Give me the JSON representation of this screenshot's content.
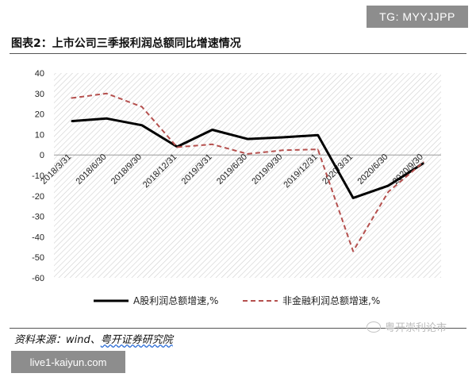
{
  "header": {
    "tg_label": "TG: MYYJJPP",
    "title": "图表2：上市公司三季报利润总额同比增速情况"
  },
  "footer": {
    "source_prefix": "资料来源：wind、",
    "source_org": "粤开证券研究院",
    "watermark": "粤开崇利论市",
    "site": "live1-kaiyun.com"
  },
  "colors": {
    "series_a": "#000000",
    "series_b": "#b5504e",
    "grid_hatch": "#d0d0d0"
  },
  "chart_data": {
    "type": "line",
    "categories": [
      "2018/3/31",
      "2018/6/30",
      "2018/9/30",
      "2018/12/31",
      "2019/3/31",
      "2019/6/30",
      "2019/9/30",
      "2019/12/31",
      "2020/3/31",
      "2020/6/30",
      "2020/9/30"
    ],
    "series": [
      {
        "name": "A股利润总额增速,%",
        "values": [
          16.5,
          17.8,
          14.5,
          4.0,
          12.3,
          7.8,
          8.6,
          9.7,
          -21.0,
          -15.0,
          -4.0
        ],
        "style": "solid"
      },
      {
        "name": "非金融利润总额增速,%",
        "values": [
          27.8,
          30.0,
          23.5,
          3.8,
          5.2,
          0.5,
          2.3,
          2.7,
          -47.0,
          -18.0,
          -3.5
        ],
        "style": "dashed"
      }
    ],
    "ylim": [
      -60,
      40
    ],
    "yticks": [
      "40",
      "30",
      "20",
      "10",
      "0",
      "-10",
      "-20",
      "-30",
      "-40",
      "-50",
      "-60"
    ],
    "legend_position": "bottom",
    "grid": "hatched background"
  }
}
